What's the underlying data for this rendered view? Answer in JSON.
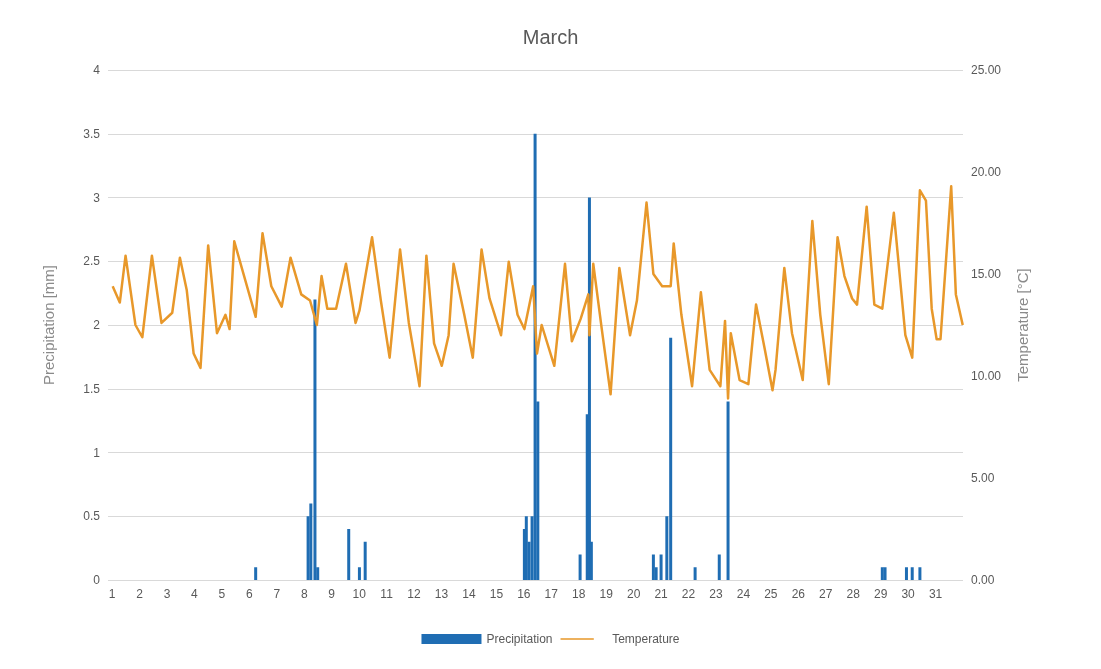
{
  "chart_data": {
    "type": "bar",
    "title": "March",
    "ylabel": "Precipitation [mm]",
    "y2label": "Temperature [°C]",
    "xlim": [
      0.85,
      32
    ],
    "xticks": [
      1,
      2,
      3,
      4,
      5,
      6,
      7,
      8,
      9,
      10,
      11,
      12,
      13,
      14,
      15,
      16,
      17,
      18,
      19,
      20,
      21,
      22,
      23,
      24,
      25,
      26,
      27,
      28,
      29,
      30,
      31
    ],
    "ylim": [
      0,
      4
    ],
    "yticks": [
      0,
      0.5,
      1,
      1.5,
      2,
      2.5,
      3,
      3.5,
      4
    ],
    "y2lim": [
      0,
      25
    ],
    "y2ticks": [
      {
        "value": 0,
        "label": "0.00"
      },
      {
        "value": 5,
        "label": "5.00"
      },
      {
        "value": 10,
        "label": "10.00"
      },
      {
        "value": 15,
        "label": "15.00"
      },
      {
        "value": 20,
        "label": "20.00"
      },
      {
        "value": 25,
        "label": "25.00"
      }
    ],
    "grid": "y",
    "legend": "bottom",
    "marker": "none",
    "series": [
      {
        "name": "Precipitation",
        "color": "#1f6db3",
        "x": [
          6.23,
          8.14,
          8.24,
          8.39,
          8.49,
          9.62,
          10.01,
          10.22,
          16.02,
          16.09,
          16.19,
          16.3,
          16.41,
          16.51,
          18.05,
          18.31,
          18.39,
          18.46,
          20.72,
          20.82,
          21.0,
          21.21,
          21.35,
          22.24,
          23.12,
          23.44,
          29.06,
          29.16,
          29.94,
          30.15,
          30.43
        ],
        "values": [
          0.1,
          0.5,
          0.6,
          2.2,
          0.1,
          0.4,
          0.1,
          0.3,
          0.4,
          0.5,
          0.3,
          0.5,
          3.5,
          1.4,
          0.2,
          1.3,
          3.0,
          0.3,
          0.2,
          0.1,
          0.2,
          0.5,
          1.9,
          0.1,
          0.2,
          1.4,
          0.1,
          0.1,
          0.1,
          0.1,
          0.1
        ]
      },
      {
        "name": "Temperature",
        "type": "line",
        "axis": "y2",
        "color": "#e8982a",
        "x": [
          1.02,
          1.28,
          1.49,
          1.85,
          2.1,
          2.45,
          2.8,
          3.19,
          3.47,
          3.72,
          3.97,
          4.22,
          4.5,
          4.82,
          5.13,
          5.28,
          5.45,
          6.23,
          6.48,
          6.8,
          7.18,
          7.5,
          7.89,
          8.21,
          8.46,
          8.63,
          8.84,
          9.16,
          9.52,
          9.87,
          10.01,
          10.47,
          10.79,
          11.11,
          11.49,
          11.81,
          12.2,
          12.45,
          12.73,
          13.01,
          13.26,
          13.44,
          13.83,
          14.14,
          14.46,
          14.75,
          15.17,
          15.45,
          15.77,
          16.02,
          16.34,
          16.48,
          16.65,
          17.11,
          17.5,
          17.75,
          18.07,
          18.35,
          18.39,
          18.53,
          18.84,
          19.16,
          19.48,
          19.87,
          20.12,
          20.47,
          20.72,
          21.04,
          21.35,
          21.46,
          21.74,
          22.13,
          22.45,
          22.77,
          23.16,
          23.33,
          23.44,
          23.54,
          23.86,
          24.18,
          24.46,
          24.78,
          25.06,
          25.17,
          25.49,
          25.77,
          26.16,
          26.51,
          26.8,
          27.11,
          27.43,
          27.68,
          27.96,
          28.14,
          28.49,
          28.77,
          29.06,
          29.48,
          29.9,
          30.15,
          30.43,
          30.65,
          30.86,
          31.04,
          31.18,
          31.57,
          31.74,
          31.99
        ],
        "values": [
          14.4,
          13.6,
          15.9,
          12.5,
          11.9,
          15.9,
          12.6,
          13.1,
          15.8,
          14.2,
          11.1,
          10.4,
          16.4,
          12.1,
          13.0,
          12.3,
          16.6,
          12.9,
          17.0,
          14.4,
          13.4,
          15.8,
          14.0,
          13.7,
          12.5,
          14.9,
          13.3,
          13.3,
          15.5,
          12.6,
          13.2,
          16.8,
          13.7,
          10.9,
          16.2,
          12.6,
          9.5,
          15.9,
          11.6,
          10.5,
          12.0,
          15.5,
          13.0,
          10.9,
          16.2,
          13.8,
          12.0,
          15.6,
          13.0,
          12.3,
          14.4,
          11.1,
          12.5,
          10.5,
          15.5,
          11.7,
          12.8,
          14.0,
          12.0,
          15.5,
          12.3,
          9.1,
          15.3,
          12.0,
          13.7,
          18.5,
          15.0,
          14.4,
          14.4,
          16.5,
          13.0,
          9.5,
          14.1,
          10.3,
          9.5,
          12.7,
          8.9,
          12.1,
          9.8,
          9.6,
          13.5,
          11.3,
          9.3,
          10.3,
          15.3,
          12.1,
          9.8,
          17.6,
          13.0,
          9.6,
          16.8,
          14.9,
          13.8,
          13.5,
          18.3,
          13.5,
          13.3,
          18.0,
          12.0,
          10.9,
          19.1,
          18.6,
          13.3,
          11.8,
          11.8,
          19.3,
          14.0,
          12.5
        ]
      }
    ]
  }
}
